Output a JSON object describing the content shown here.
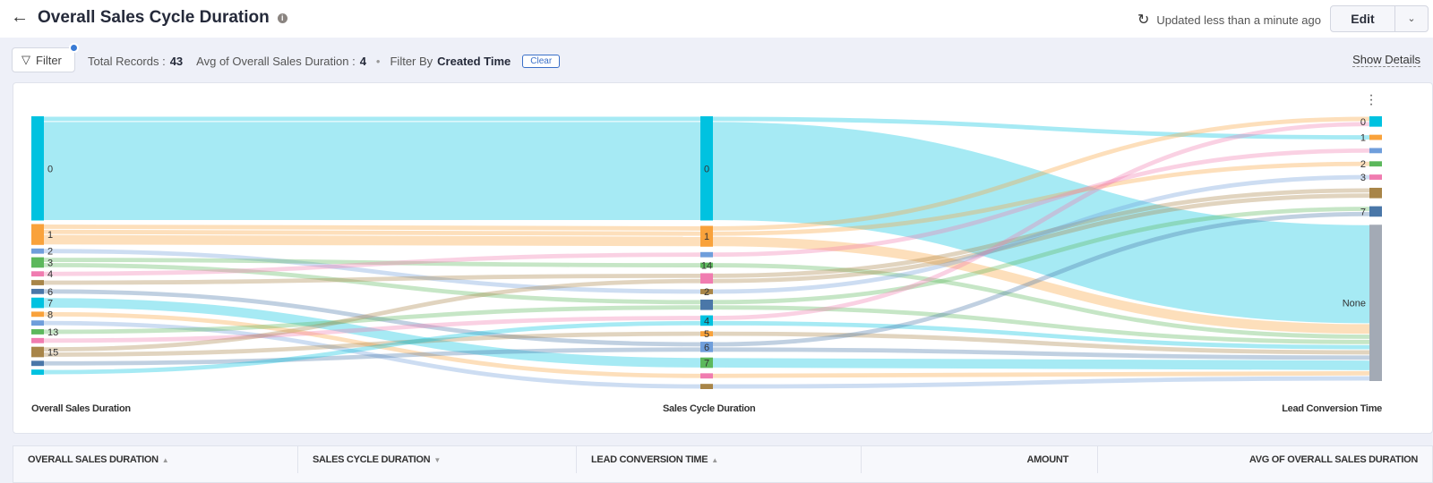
{
  "header": {
    "title": "Overall Sales Cycle Duration",
    "updated": "Updated less than a minute ago",
    "edit_label": "Edit"
  },
  "filterbar": {
    "filter_label": "Filter",
    "total_records_label": "Total Records :",
    "total_records": "43",
    "avg_label": "Avg of Overall Sales Duration :",
    "avg_value": "4",
    "filter_by_label": "Filter By",
    "filter_by_value": "Created Time",
    "clear_label": "Clear",
    "show_details": "Show Details"
  },
  "chart_data": {
    "type": "sankey",
    "columns": [
      "Overall Sales Duration",
      "Sales Cycle Duration",
      "Lead Conversion Time"
    ],
    "palette": [
      "#00c2e0",
      "#f9a23b",
      "#6f9edb",
      "#5cb85c",
      "#f07cb0",
      "#a88548",
      "#4a77a8"
    ],
    "none_color": "#a3aab5",
    "nodes": [
      [
        "0",
        "1",
        "2",
        "3",
        "4",
        "",
        "6",
        "7",
        "8",
        "",
        "13",
        "",
        "15",
        "",
        ""
      ],
      [
        "0",
        "1",
        "",
        "14",
        "",
        "2",
        "",
        "4",
        "5",
        "6",
        "7",
        "",
        ""
      ],
      [
        "0",
        "1",
        "",
        "2",
        "3",
        "",
        "7",
        "None"
      ]
    ],
    "flows": [
      [
        0,
        0,
        1,
        1
      ],
      [
        0,
        0,
        7,
        19
      ],
      [
        1,
        1,
        0,
        1
      ],
      [
        1,
        1,
        3,
        1
      ],
      [
        1,
        1,
        7,
        2
      ],
      [
        2,
        5,
        4,
        1
      ],
      [
        3,
        3,
        7,
        1
      ],
      [
        3,
        6,
        6,
        1
      ],
      [
        4,
        2,
        2,
        1
      ],
      [
        5,
        4,
        5,
        1
      ],
      [
        6,
        9,
        7,
        1
      ],
      [
        7,
        10,
        7,
        2
      ],
      [
        8,
        11,
        7,
        1
      ],
      [
        9,
        12,
        7,
        1
      ],
      [
        10,
        6,
        7,
        1
      ],
      [
        11,
        7,
        0,
        1
      ],
      [
        12,
        4,
        5,
        1
      ],
      [
        12,
        8,
        7,
        1
      ],
      [
        13,
        9,
        6,
        1
      ],
      [
        14,
        7,
        7,
        1
      ]
    ]
  },
  "table": {
    "columns": [
      {
        "label": "OVERALL SALES DURATION",
        "sort": "▲"
      },
      {
        "label": "SALES CYCLE DURATION",
        "sort": "▼"
      },
      {
        "label": "LEAD CONVERSION TIME",
        "sort": "▲"
      },
      {
        "label": "AMOUNT",
        "sort": ""
      },
      {
        "label": "AVG OF OVERALL SALES DURATION",
        "sort": ""
      }
    ]
  }
}
